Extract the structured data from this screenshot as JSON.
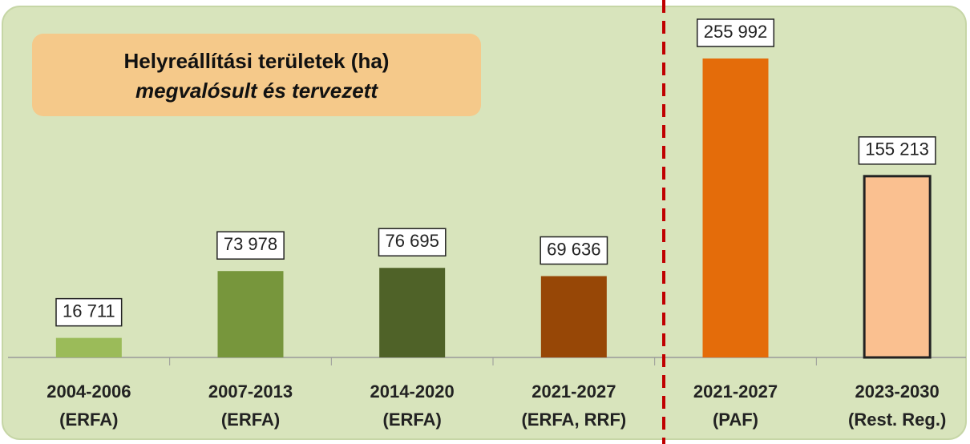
{
  "chart_data": {
    "type": "bar",
    "title": "Helyreállítási területek (ha)",
    "subtitle": "megvalósult és tervezett",
    "categories": [
      [
        "2004-2006",
        "(ERFA)"
      ],
      [
        "2007-2013",
        "(ERFA)"
      ],
      [
        "2014-2020",
        "(ERFA)"
      ],
      [
        "2021-2027",
        "(ERFA, RRF)"
      ],
      [
        "2021-2027",
        "(PAF)"
      ],
      [
        "2023-2030",
        "(Rest. Reg.)"
      ]
    ],
    "values": [
      16711,
      73978,
      76695,
      69636,
      255992,
      155213
    ],
    "value_labels": [
      "16 711",
      "73 978",
      "76 695",
      "69 636",
      "255 992",
      "155 213"
    ],
    "colors": [
      "#9bbb59",
      "#77963c",
      "#4f6228",
      "#974706",
      "#e46c0a",
      "#fac090"
    ],
    "ylim": [
      0,
      280000
    ]
  }
}
